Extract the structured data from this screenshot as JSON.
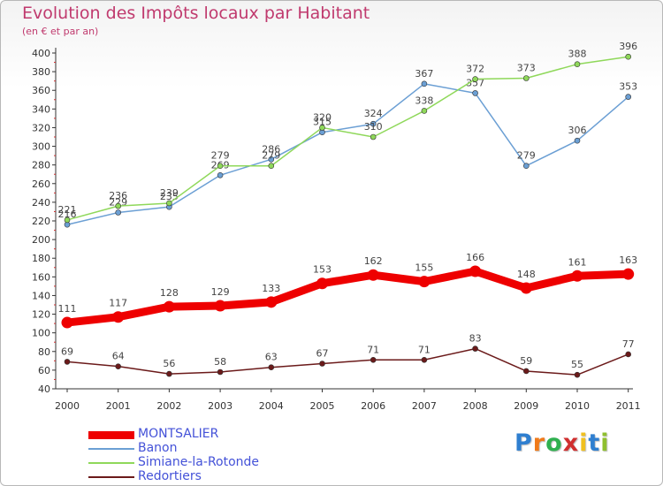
{
  "header": {
    "title": "Evolution des Impôts locaux par Habitant",
    "subtitle": "(en € et par an)"
  },
  "chart_data": {
    "type": "line",
    "title": "Evolution des Impôts locaux par Habitant",
    "subtitle": "(en € et par an)",
    "xlabel": "",
    "ylabel": "",
    "categories": [
      "2000",
      "2001",
      "2002",
      "2003",
      "2004",
      "2005",
      "2006",
      "2007",
      "2008",
      "2009",
      "2010",
      "2011"
    ],
    "ylim": [
      40,
      400
    ],
    "yticks": [
      40,
      60,
      80,
      100,
      120,
      140,
      160,
      180,
      200,
      220,
      240,
      260,
      280,
      300,
      320,
      340,
      360,
      380,
      400
    ],
    "grid": false,
    "legend_position": "bottom-left",
    "series": [
      {
        "name": "MONTSALIER",
        "color": "#ee0000",
        "emphasis": true,
        "values": [
          111,
          117,
          128,
          129,
          133,
          153,
          162,
          155,
          166,
          148,
          161,
          163
        ]
      },
      {
        "name": "Banon",
        "color": "#6b9fd4",
        "emphasis": false,
        "values": [
          216,
          229,
          235,
          269,
          286,
          315,
          324,
          367,
          357,
          279,
          306,
          353
        ]
      },
      {
        "name": "Simiane-la-Rotonde",
        "color": "#8fd85a",
        "emphasis": false,
        "values": [
          221,
          236,
          239,
          279,
          279,
          320,
          310,
          338,
          372,
          373,
          388,
          396
        ]
      },
      {
        "name": "Redortiers",
        "color": "#6b1a1a",
        "emphasis": false,
        "values": [
          69,
          64,
          56,
          58,
          63,
          67,
          71,
          71,
          83,
          59,
          55,
          77
        ]
      }
    ]
  },
  "logo": {
    "letters": [
      "P",
      "r",
      "o",
      "x",
      "i",
      "t",
      "i"
    ],
    "colors": [
      "#2f7fd0",
      "#f07a1a",
      "#2fb04f",
      "#d02f2f",
      "#f0c020",
      "#2f7fd0",
      "#8fbf2f"
    ]
  }
}
